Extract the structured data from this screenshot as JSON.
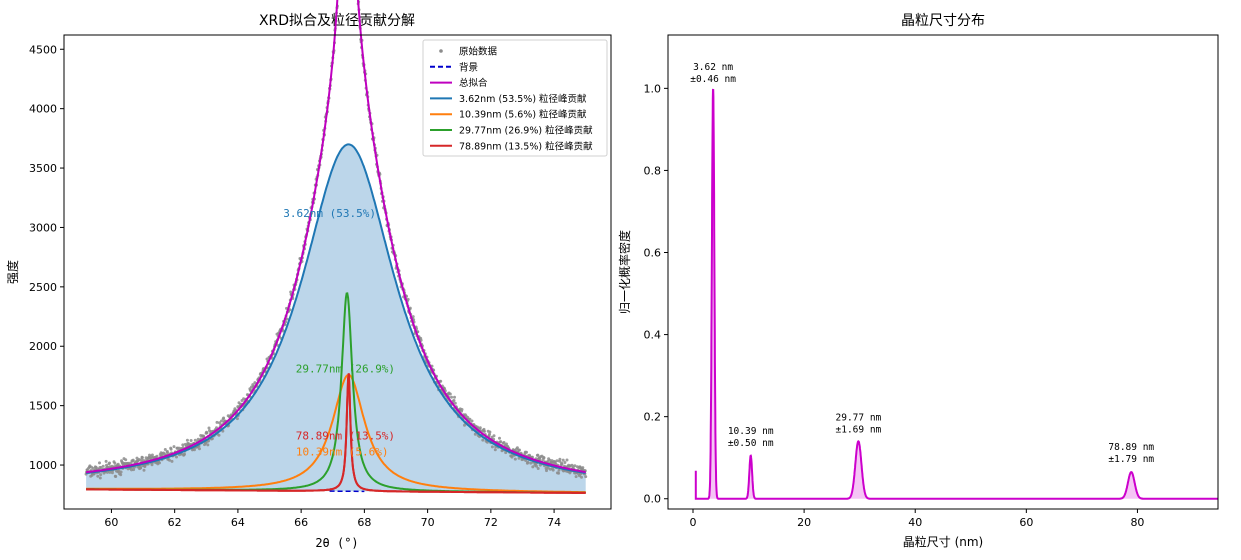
{
  "chart_data": [
    {
      "type": "line",
      "title": "XRD拟合及粒径贡献分解",
      "xlabel": "2θ (°)",
      "ylabel": "强度",
      "xlim": [
        58.5,
        75.8
      ],
      "ylim": [
        630,
        4620
      ],
      "x_ticks": [
        60,
        62,
        64,
        66,
        68,
        70,
        72,
        74
      ],
      "y_ticks": [
        1000,
        1500,
        2000,
        2500,
        3000,
        3500,
        4000,
        4500
      ],
      "grid": false,
      "legend_position": "top-right",
      "background": {
        "name": "背景",
        "start": [
          59.2,
          795
        ],
        "end": [
          75.0,
          765
        ],
        "color": "#0000cc"
      },
      "raw_data": {
        "name": "原始数据",
        "x_range": [
          59.2,
          75.0
        ],
        "color": "#8c8c8c"
      },
      "total_fit": {
        "name": "总拟合",
        "color": "#bf00bf"
      },
      "components": [
        {
          "name": "3.62nm (53.5%) 粒径峰贡献",
          "label": "3.62nm (53.5%)",
          "center": 67.5,
          "peak": 2920,
          "fwhm": 3.7,
          "color": "#1f77b4",
          "label_at": [
            66.9,
            3090
          ]
        },
        {
          "name": "10.39nm (5.6%) 粒径峰贡献",
          "label": "10.39nm (5.6%)",
          "center": 67.5,
          "peak": 980,
          "fwhm": 1.25,
          "color": "#ff7f0e",
          "label_at": [
            67.3,
            1080
          ]
        },
        {
          "name": "29.77nm (26.9%) 粒径峰贡献",
          "label": "29.77nm (26.9%)",
          "center": 67.45,
          "peak": 1670,
          "fwhm": 0.42,
          "color": "#2ca02c",
          "label_at": [
            67.4,
            1780
          ]
        },
        {
          "name": "78.89nm (13.5%) 粒径峰贡献",
          "label": "78.89nm (13.5%)",
          "center": 67.5,
          "peak": 1000,
          "fwhm": 0.14,
          "color": "#d62728",
          "label_at": [
            67.4,
            1215
          ]
        }
      ]
    },
    {
      "type": "line",
      "title": "晶粒尺寸分布",
      "xlabel": "晶粒尺寸 (nm)",
      "ylabel": "归一化概率密度",
      "xlim": [
        -4.5,
        94.5
      ],
      "ylim": [
        -0.025,
        1.13
      ],
      "x_ticks": [
        0,
        20,
        40,
        60,
        80
      ],
      "y_ticks": [
        "0.0",
        "0.2",
        "0.4",
        "0.6",
        "0.8",
        "1.0"
      ],
      "grid": false,
      "color": "#cc00cc",
      "fill_color": "#f2b6f2",
      "peaks": [
        {
          "center": 3.62,
          "sigma": 0.22,
          "height": 1.0,
          "label": "3.62 nm",
          "sigma_label": "±0.46 nm",
          "label_at": [
            3.62,
            1.015
          ]
        },
        {
          "center": 10.39,
          "sigma": 0.25,
          "height": 0.105,
          "label": "10.39 nm",
          "sigma_label": "±0.50 nm",
          "label_at": [
            10.39,
            0.128
          ]
        },
        {
          "center": 29.77,
          "sigma": 0.55,
          "height": 0.14,
          "label": "29.77 nm",
          "sigma_label": "±1.69 nm",
          "label_at": [
            29.77,
            0.162
          ]
        },
        {
          "center": 78.89,
          "sigma": 0.6,
          "height": 0.065,
          "label": "78.89 nm",
          "sigma_label": "±1.79 nm",
          "label_at": [
            78.89,
            0.09
          ]
        }
      ],
      "start_spike": {
        "x": 0.5,
        "height": 0.068
      }
    }
  ]
}
